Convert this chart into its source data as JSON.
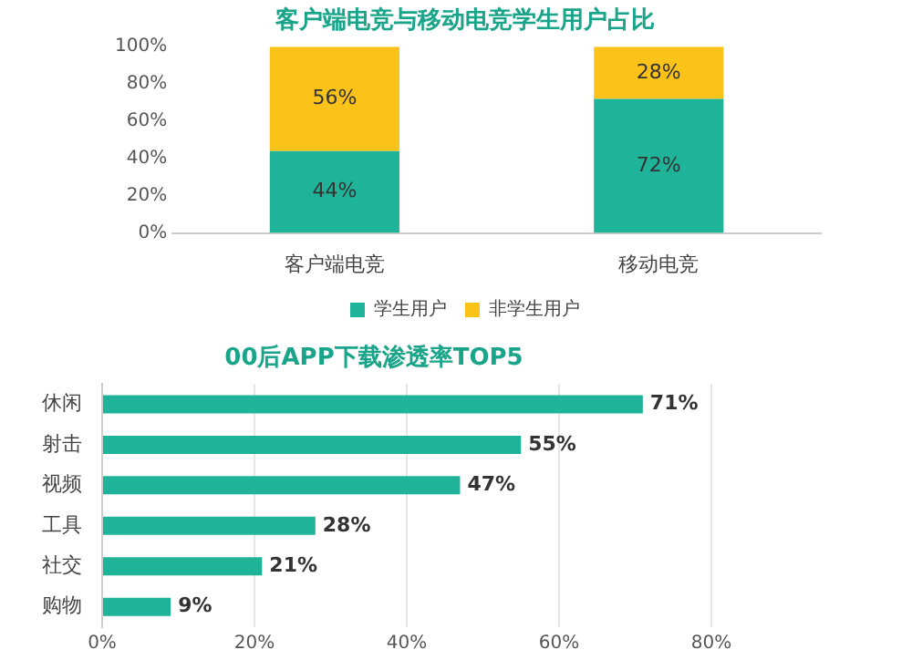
{
  "chart_data": [
    {
      "type": "bar",
      "title": "客户端电竞与移动电竞学生用户占比",
      "categories": [
        "客户端电竞",
        "移动电竞"
      ],
      "stacked": true,
      "series": [
        {
          "name": "学生用户",
          "color": "#1fb39a",
          "values": [
            44,
            72
          ],
          "value_labels": [
            "44%",
            "72%"
          ]
        },
        {
          "name": "非学生用户",
          "color": "#fbc21a",
          "values": [
            56,
            28
          ],
          "value_labels": [
            "56%",
            "28%"
          ]
        }
      ],
      "ylim": [
        0,
        100
      ],
      "yticks": [
        {
          "value": 0,
          "label": "0%"
        },
        {
          "value": 20,
          "label": "20%"
        },
        {
          "value": 40,
          "label": "40%"
        },
        {
          "value": 60,
          "label": "60%"
        },
        {
          "value": 80,
          "label": "80%"
        },
        {
          "value": 100,
          "label": "100%"
        }
      ],
      "grid": false,
      "legend": "bottom"
    },
    {
      "type": "bar",
      "title": "00后APP下载渗透率TOP5",
      "orientation": "horizontal",
      "categories": [
        "休闲",
        "射击",
        "视频",
        "工具",
        "社交",
        "购物"
      ],
      "series": [
        {
          "color": "#1fb39a",
          "values": [
            71,
            55,
            47,
            28,
            21,
            9
          ],
          "value_labels": [
            "71%",
            "55%",
            "47%",
            "28%",
            "21%",
            "9%"
          ]
        }
      ],
      "xlim": [
        0,
        80
      ],
      "xticks": [
        {
          "value": 0,
          "label": "0%"
        },
        {
          "value": 20,
          "label": "20%"
        },
        {
          "value": 40,
          "label": "40%"
        },
        {
          "value": 60,
          "label": "60%"
        },
        {
          "value": 80,
          "label": "80%"
        }
      ],
      "grid": "x",
      "legend": false
    }
  ]
}
